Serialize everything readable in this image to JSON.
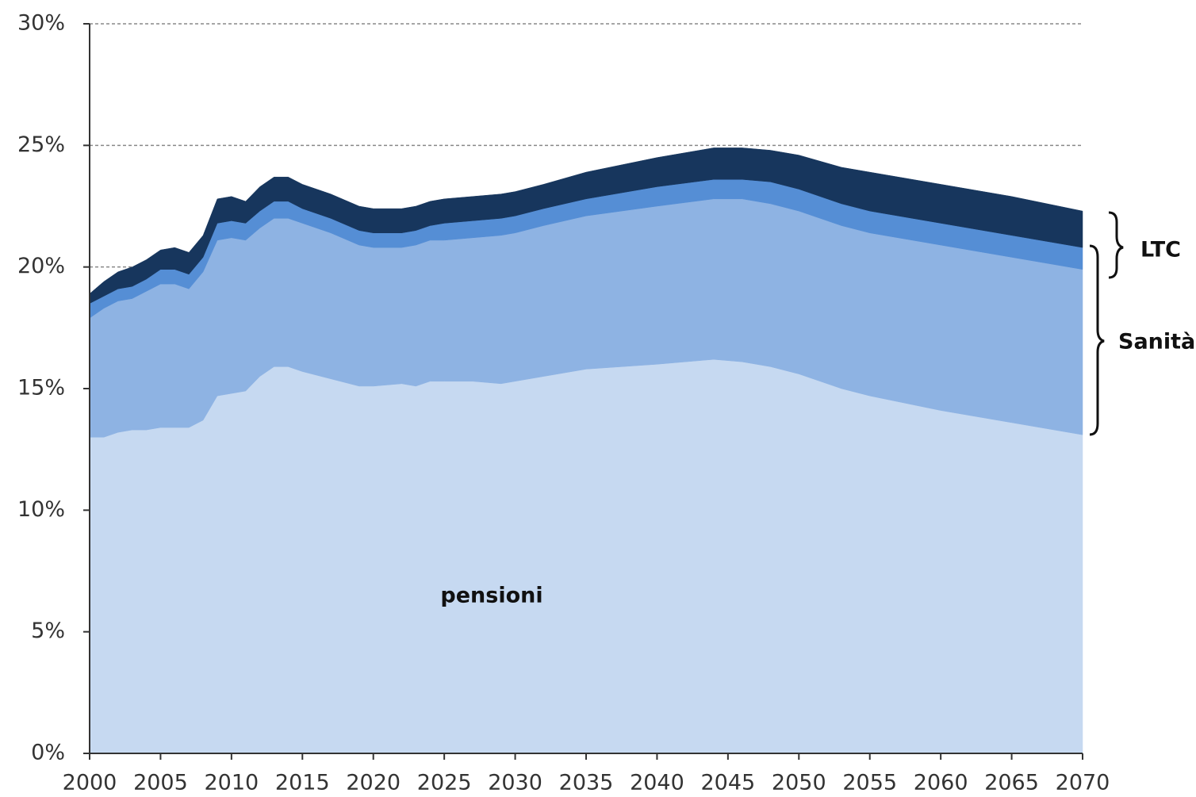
{
  "chart_data": {
    "type": "stacked-area",
    "x": [
      2000,
      2001,
      2002,
      2003,
      2004,
      2005,
      2006,
      2007,
      2008,
      2009,
      2010,
      2011,
      2012,
      2013,
      2014,
      2015,
      2017,
      2019,
      2020,
      2022,
      2023,
      2024,
      2025,
      2027,
      2029,
      2030,
      2032,
      2035,
      2040,
      2044,
      2046,
      2048,
      2050,
      2053,
      2055,
      2060,
      2065,
      2070
    ],
    "series": [
      {
        "name": "pensioni",
        "color": "#c6d9f1",
        "values": [
          13.0,
          13.0,
          13.2,
          13.3,
          13.3,
          13.4,
          13.4,
          13.4,
          13.7,
          14.7,
          14.8,
          14.9,
          15.5,
          15.9,
          15.9,
          15.7,
          15.4,
          15.1,
          15.1,
          15.2,
          15.1,
          15.3,
          15.3,
          15.3,
          15.2,
          15.3,
          15.5,
          15.8,
          16.0,
          16.2,
          16.1,
          15.9,
          15.6,
          15.0,
          14.7,
          14.1,
          13.6,
          13.1
        ]
      },
      {
        "color": "#8eb3e3",
        "values": [
          4.9,
          5.3,
          5.4,
          5.4,
          5.7,
          5.9,
          5.9,
          5.7,
          6.1,
          6.4,
          6.4,
          6.2,
          6.1,
          6.1,
          6.1,
          6.1,
          6.0,
          5.8,
          5.7,
          5.6,
          5.8,
          5.8,
          5.8,
          5.9,
          6.1,
          6.1,
          6.2,
          6.3,
          6.5,
          6.6,
          6.7,
          6.7,
          6.7,
          6.7,
          6.7,
          6.8,
          6.8,
          6.8
        ]
      },
      {
        "color": "#558ed5",
        "values": [
          0.6,
          0.5,
          0.5,
          0.5,
          0.5,
          0.6,
          0.6,
          0.6,
          0.6,
          0.7,
          0.7,
          0.7,
          0.7,
          0.7,
          0.7,
          0.6,
          0.6,
          0.6,
          0.6,
          0.6,
          0.6,
          0.6,
          0.7,
          0.7,
          0.7,
          0.7,
          0.7,
          0.7,
          0.8,
          0.8,
          0.8,
          0.9,
          0.9,
          0.9,
          0.9,
          0.9,
          0.9,
          0.9
        ]
      },
      {
        "color": "#17365d",
        "values": [
          0.4,
          0.6,
          0.7,
          0.8,
          0.8,
          0.8,
          0.9,
          0.9,
          0.9,
          1.0,
          1.0,
          0.9,
          1.0,
          1.0,
          1.0,
          1.0,
          1.0,
          1.0,
          1.0,
          1.0,
          1.0,
          1.0,
          1.0,
          1.0,
          1.0,
          1.0,
          1.0,
          1.1,
          1.2,
          1.3,
          1.3,
          1.3,
          1.4,
          1.5,
          1.6,
          1.6,
          1.6,
          1.5
        ]
      }
    ],
    "xlim": [
      2000,
      2070
    ],
    "xticks": [
      2000,
      2005,
      2010,
      2015,
      2020,
      2025,
      2030,
      2035,
      2040,
      2045,
      2050,
      2055,
      2060,
      2065,
      2070
    ],
    "ylim": [
      0,
      30
    ],
    "yticks": [
      {
        "value": 0,
        "label": "0%"
      },
      {
        "value": 5,
        "label": "5%"
      },
      {
        "value": 10,
        "label": "10%"
      },
      {
        "value": 15,
        "label": "15%"
      },
      {
        "value": 20,
        "label": "20%"
      },
      {
        "value": 25,
        "label": "25%"
      },
      {
        "value": 30,
        "label": "30%"
      }
    ],
    "grid": true,
    "annotations": [
      "LTC",
      "Sanità"
    ]
  }
}
